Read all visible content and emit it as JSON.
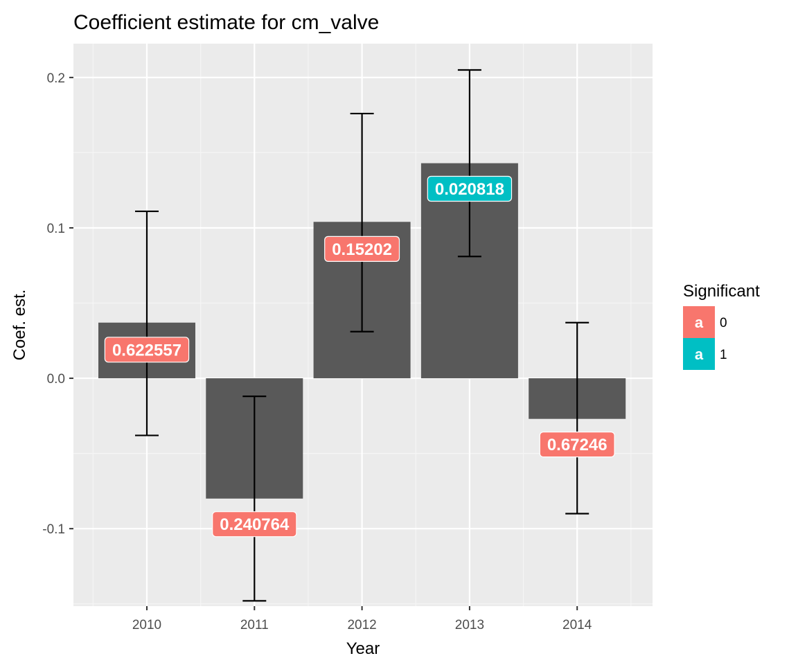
{
  "chart_data": {
    "type": "bar",
    "title": "Coefficient estimate for cm_valve",
    "xlabel": "Year",
    "ylabel": "Coef. est.",
    "categories": [
      "2010",
      "2011",
      "2012",
      "2013",
      "2014"
    ],
    "values": [
      0.037,
      -0.08,
      0.104,
      0.143,
      -0.027
    ],
    "error_lower": [
      -0.038,
      -0.148,
      0.031,
      0.081,
      -0.09
    ],
    "error_upper": [
      0.111,
      -0.012,
      0.176,
      0.205,
      0.037
    ],
    "labels": [
      "0.622557",
      "0.240764",
      "0.15202",
      "0.020818",
      "0.67246"
    ],
    "label_y": [
      0.019,
      -0.097,
      0.086,
      0.126,
      -0.044
    ],
    "significant": [
      "0",
      "0",
      "0",
      "1",
      "0"
    ],
    "ylim": [
      -0.1515,
      0.2225
    ],
    "yticks": [
      -0.1,
      0.0,
      0.1,
      0.2
    ],
    "ytick_labels": [
      "-0.1",
      "0.0",
      "0.1",
      "0.2"
    ],
    "grid": true,
    "bar_color": "#595959",
    "panel_background": "#ebebeb",
    "legend": {
      "title": "Significant",
      "position": "right",
      "entries": [
        {
          "key": "0",
          "label": "0",
          "color": "#F8766D",
          "glyph": "a"
        },
        {
          "key": "1",
          "label": "1",
          "color": "#00BFC4",
          "glyph": "a"
        }
      ]
    }
  }
}
